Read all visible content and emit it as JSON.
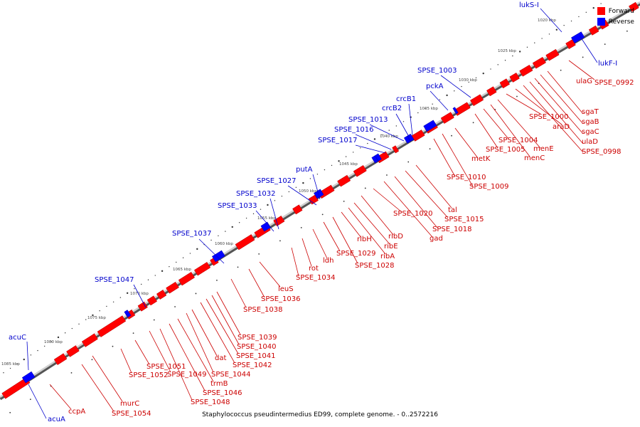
{
  "caption": "Staphylococcus pseudintermedius ED99, complete genome. - 0..2572216",
  "legend": {
    "forward_label": "Forward",
    "reverse_label": "Reverse",
    "forward_color": "#ff0000",
    "reverse_color": "#0000ff"
  },
  "kbp_ticks": [
    "1020 kbp",
    "1025 kbp",
    "1030 kbp",
    "1035 kbp",
    "1040 kbp",
    "1045 kbp",
    "1050 kbp",
    "1055 kbp",
    "1060 kbp",
    "1065 kbp",
    "1070 kbp",
    "1075 kbp",
    "1080 kbp",
    "1085 kbp"
  ],
  "reverse_genes": [
    "lukS-I",
    "lukF-I",
    "SPSE_1003",
    "pckA",
    "crcB1",
    "crcB2",
    "SPSE_1013",
    "SPSE_1016",
    "SPSE_1017",
    "putA",
    "SPSE_1027",
    "SPSE_1032",
    "SPSE_1033",
    "SPSE_1037",
    "SPSE_1047",
    "acuC",
    "acuA"
  ],
  "forward_genes": [
    "SPSE_0992",
    "ulaG",
    "sgaT",
    "sgaB",
    "sgaC",
    "ulaD",
    "SPSE_0998",
    "araD",
    "SPSE_1000",
    "menE",
    "menC",
    "SPSE_1004",
    "SPSE_1005",
    "metK",
    "SPSE_1010",
    "SPSE_1009",
    "tal",
    "SPSE_1015",
    "SPSE_1018",
    "gad",
    "SPSE_1020",
    "ribD",
    "ribE",
    "ribA",
    "ribH",
    "SPSE_1029",
    "SPSE_1028",
    "ldh",
    "rot",
    "SPSE_1034",
    "leuS",
    "SPSE_1036",
    "SPSE_1038",
    "SPSE_1039",
    "SPSE_1040",
    "SPSE_1041",
    "SPSE_1042",
    "dat",
    "SPSE_1044",
    "trmB",
    "SPSE_1049",
    "SPSE_1046",
    "SPSE_1048",
    "SPSE_1051",
    "SPSE_1052",
    "murC",
    "SPSE_1054",
    "ccpA"
  ]
}
